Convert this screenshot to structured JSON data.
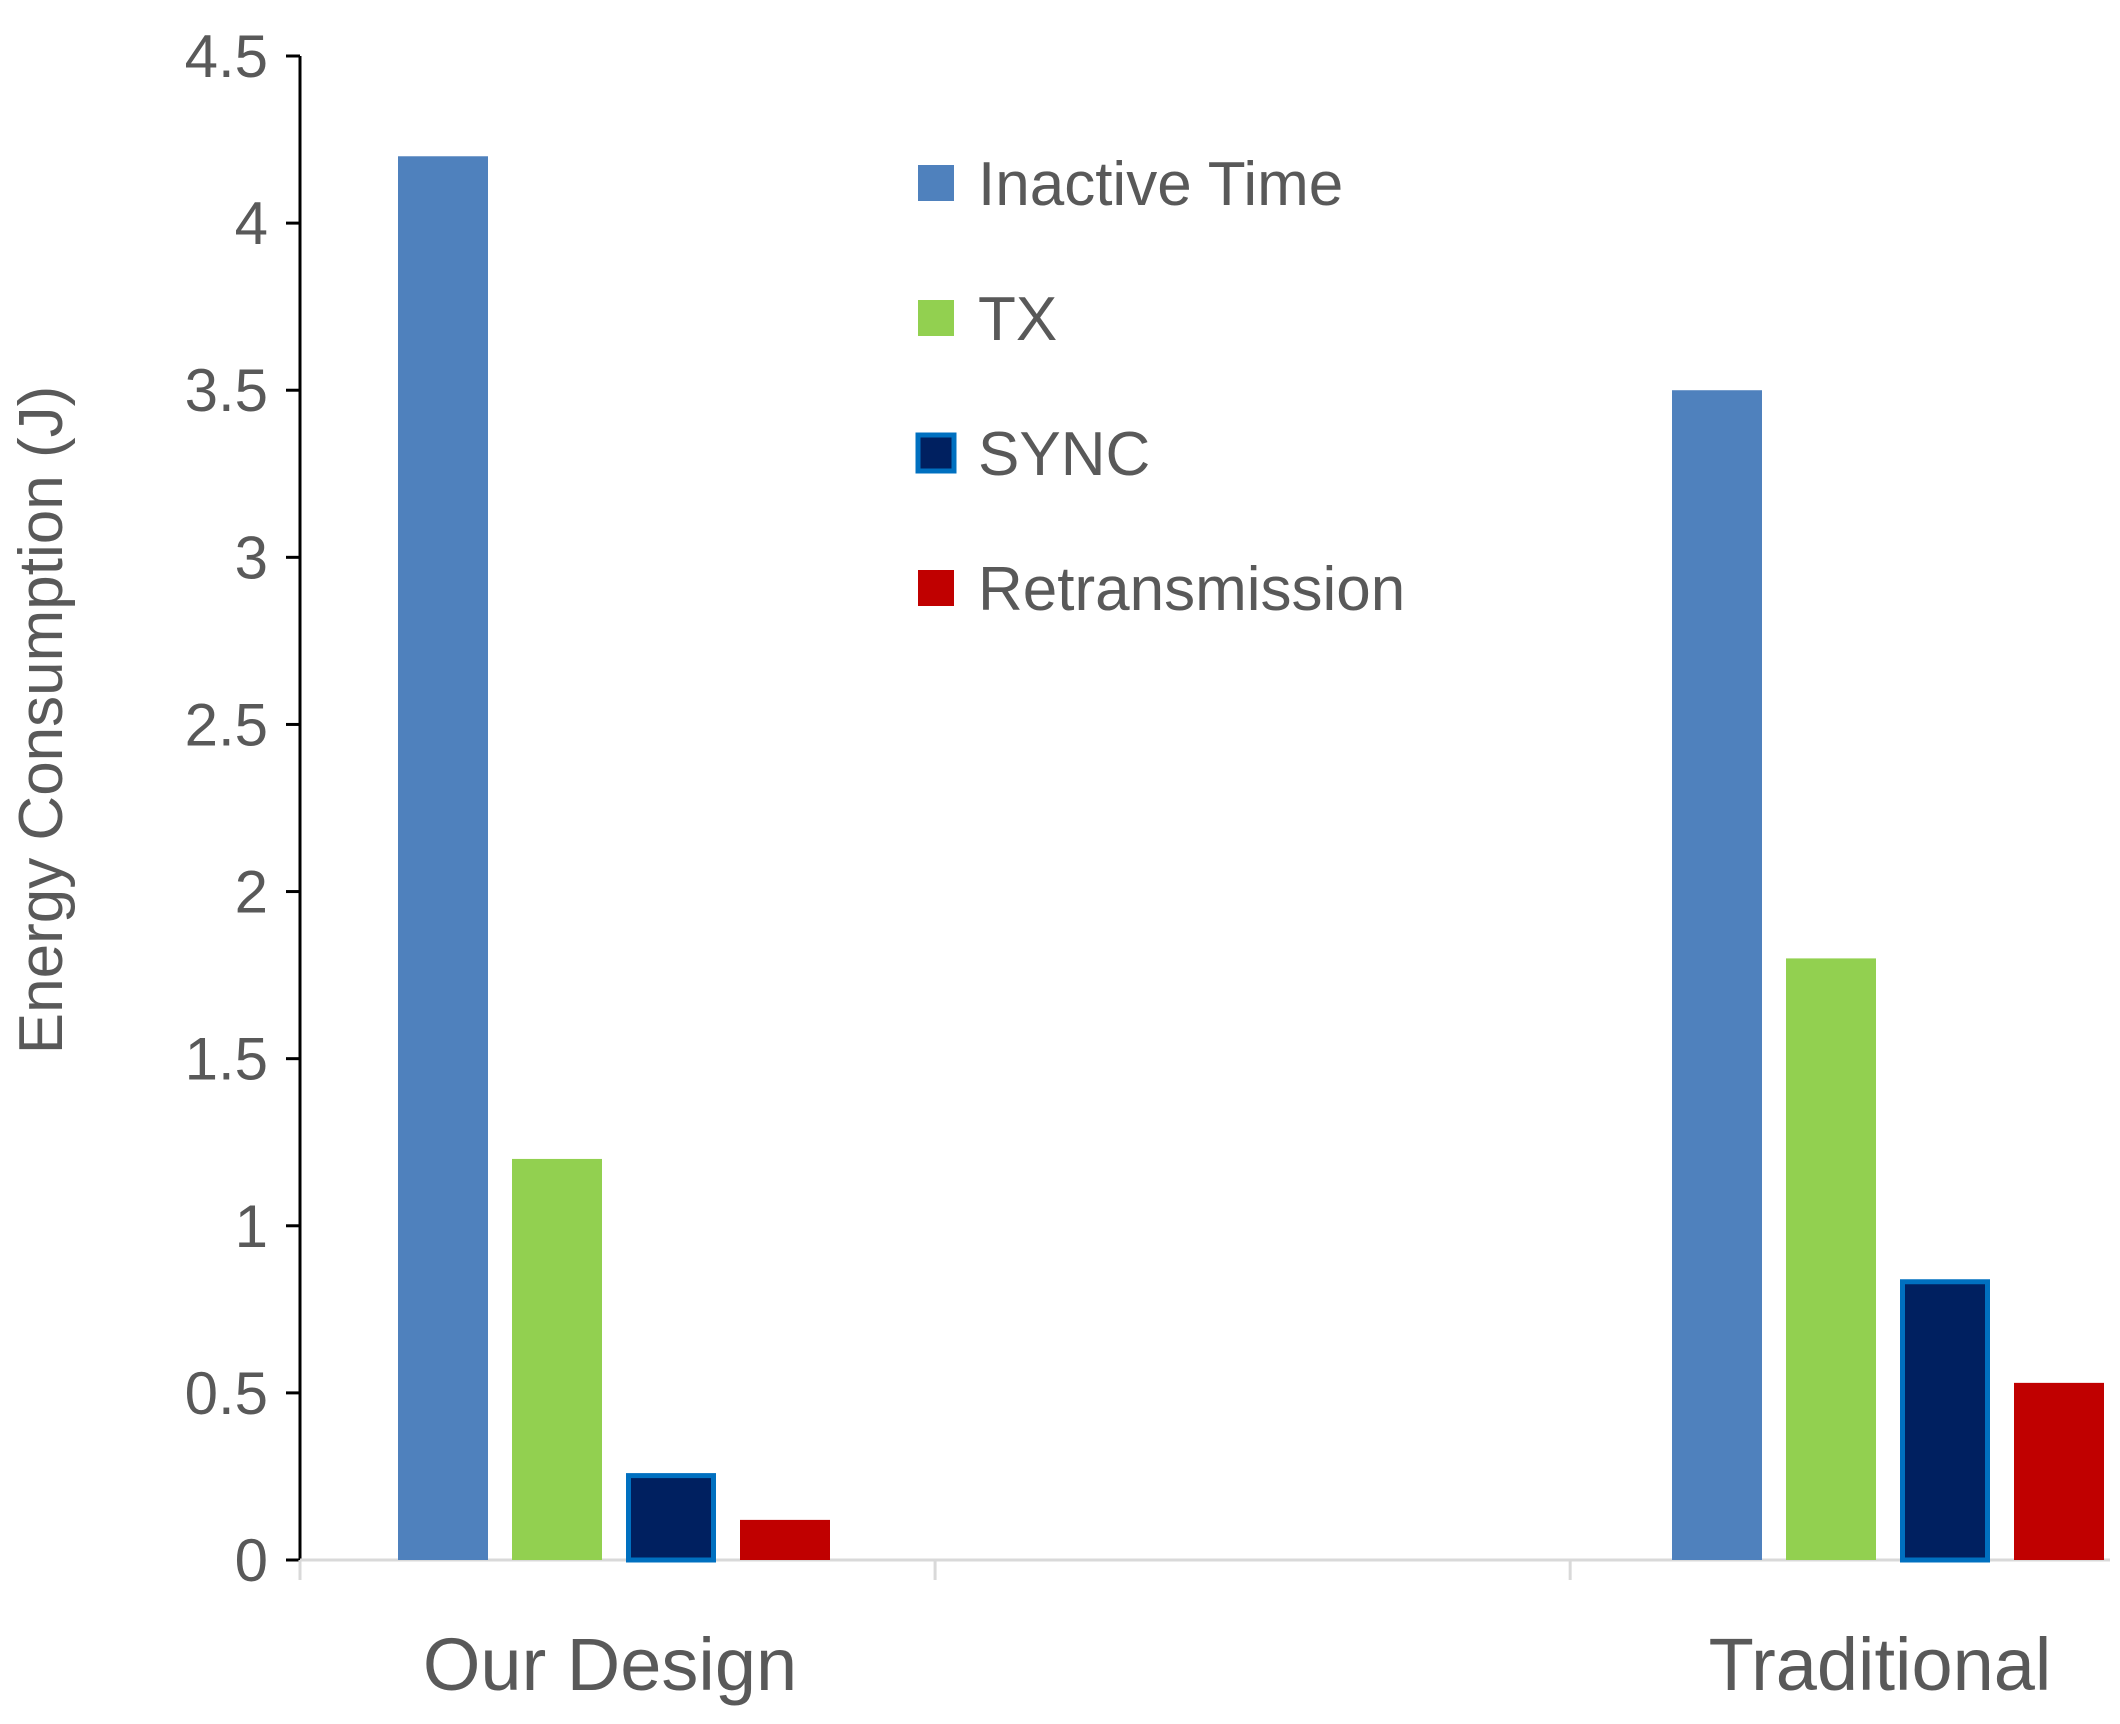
{
  "chart_data": {
    "type": "bar",
    "title": "",
    "xlabel": "",
    "ylabel": "Energy Consumption (J)",
    "ylim": [
      0,
      4.5
    ],
    "yticks": [
      0,
      0.5,
      1,
      1.5,
      2,
      2.5,
      3,
      3.5,
      4,
      4.5
    ],
    "ytick_labels": [
      "0",
      "0.5",
      "1",
      "1.5",
      "2",
      "2.5",
      "3",
      "3.5",
      "4",
      "4.5"
    ],
    "categories": [
      "Our Design",
      "Traditional"
    ],
    "series": [
      {
        "name": "Inactive Time",
        "color": "#4F81BD",
        "values": [
          4.2,
          3.5
        ]
      },
      {
        "name": "TX",
        "color": "#92D050",
        "values": [
          1.2,
          1.8
        ]
      },
      {
        "name": "SYNC",
        "color": "#002060",
        "stroke": "#0070C0",
        "values": [
          0.26,
          0.84
        ]
      },
      {
        "name": "Retransmission",
        "color": "#C00000",
        "values": [
          0.12,
          0.53
        ]
      }
    ],
    "grid": false,
    "legend_position": "top-center"
  }
}
